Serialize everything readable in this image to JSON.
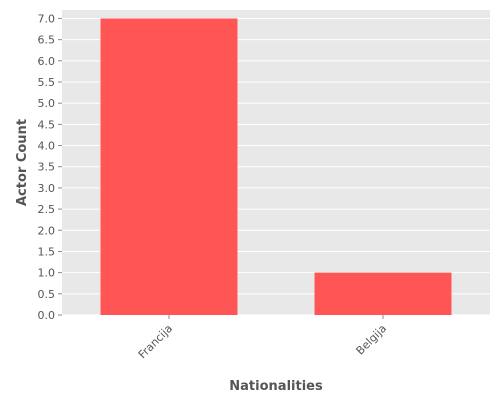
{
  "chart_data": {
    "type": "bar",
    "title": "",
    "xlabel": "Nationalities",
    "ylabel": "Actor Count",
    "categories": [
      "Francija",
      "Belgija"
    ],
    "values": [
      7,
      1
    ],
    "ylim": [
      0,
      7.2
    ],
    "yticks": [
      "0.0",
      "0.5",
      "1.0",
      "1.5",
      "2.0",
      "2.5",
      "3.0",
      "3.5",
      "4.0",
      "4.5",
      "5.0",
      "5.5",
      "6.0",
      "6.5",
      "7.0"
    ],
    "grid": true,
    "bar_color": "#ff5555",
    "plot_background": "#e8e8e8",
    "grid_color": "#ffffff"
  }
}
